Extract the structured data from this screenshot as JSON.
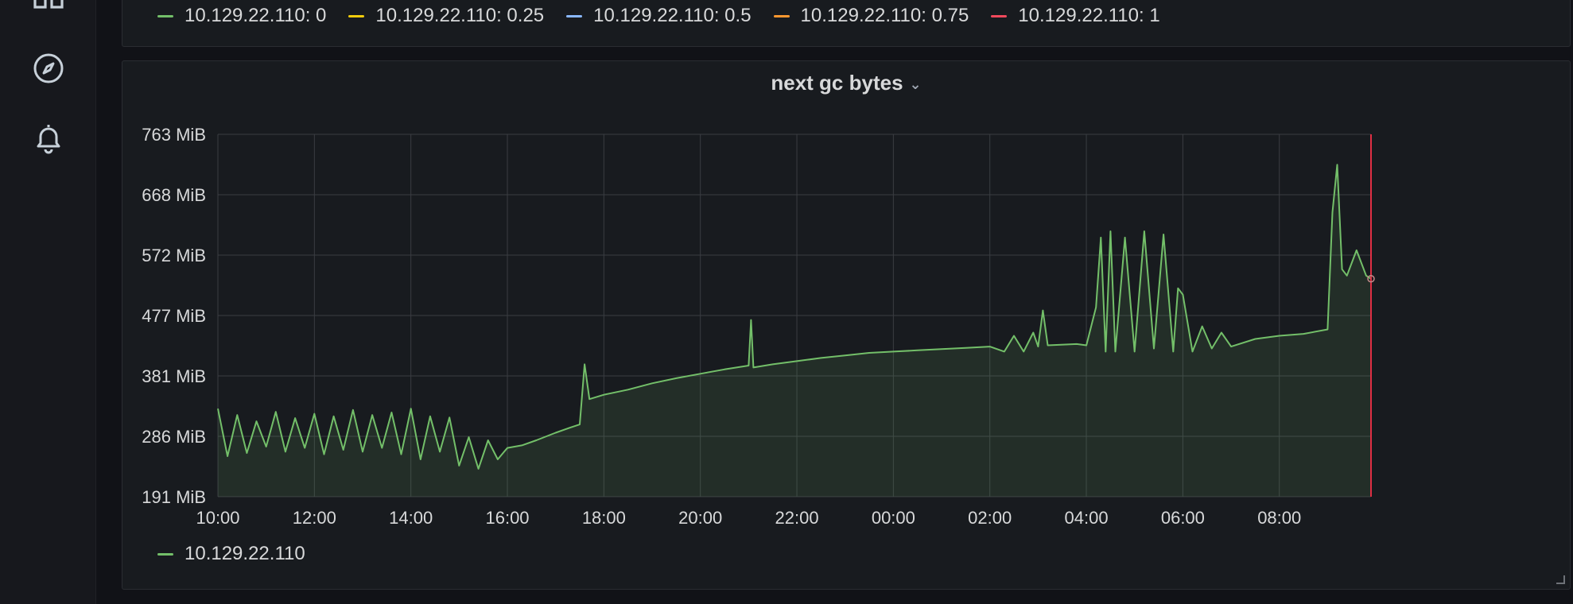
{
  "sidebar": {
    "items": [
      {
        "icon": "dashboards-icon"
      },
      {
        "icon": "explore-compass-icon"
      },
      {
        "icon": "alerting-bell-icon"
      }
    ]
  },
  "top_panel": {
    "legend": [
      {
        "label": "10.129.22.110: 0",
        "color": "#73bf69"
      },
      {
        "label": "10.129.22.110: 0.25",
        "color": "#f2cc0c"
      },
      {
        "label": "10.129.22.110: 0.5",
        "color": "#8ab8ff"
      },
      {
        "label": "10.129.22.110: 0.75",
        "color": "#ff9830"
      },
      {
        "label": "10.129.22.110: 1",
        "color": "#f2495c"
      }
    ]
  },
  "panel": {
    "title": "next gc bytes",
    "legend": [
      {
        "label": "10.129.22.110",
        "color": "#73bf69"
      }
    ]
  },
  "colors": {
    "series": "#73bf69",
    "grid": "#3a3d42",
    "now_marker": "#e02f44"
  },
  "chart_data": {
    "type": "area",
    "title": "next gc bytes",
    "y_unit": "MiB",
    "ylim": [
      191,
      763
    ],
    "y_ticks": [
      "191 MiB",
      "286 MiB",
      "381 MiB",
      "477 MiB",
      "572 MiB",
      "668 MiB",
      "763 MiB"
    ],
    "x_ticks": [
      "10:00",
      "12:00",
      "14:00",
      "16:00",
      "18:00",
      "20:00",
      "22:00",
      "00:00",
      "02:00",
      "04:00",
      "06:00",
      "08:00"
    ],
    "x_range_hours": [
      10.0,
      33.9
    ],
    "grid": true,
    "legend_position": "bottom-left",
    "series": [
      {
        "name": "10.129.22.110",
        "color": "#73bf69",
        "points": [
          [
            10.0,
            330
          ],
          [
            10.2,
            255
          ],
          [
            10.4,
            320
          ],
          [
            10.6,
            260
          ],
          [
            10.8,
            310
          ],
          [
            11.0,
            270
          ],
          [
            11.2,
            325
          ],
          [
            11.4,
            262
          ],
          [
            11.6,
            315
          ],
          [
            11.8,
            268
          ],
          [
            12.0,
            322
          ],
          [
            12.2,
            258
          ],
          [
            12.4,
            318
          ],
          [
            12.6,
            265
          ],
          [
            12.8,
            328
          ],
          [
            13.0,
            262
          ],
          [
            13.2,
            320
          ],
          [
            13.4,
            268
          ],
          [
            13.6,
            324
          ],
          [
            13.8,
            258
          ],
          [
            14.0,
            330
          ],
          [
            14.2,
            250
          ],
          [
            14.4,
            318
          ],
          [
            14.6,
            262
          ],
          [
            14.8,
            316
          ],
          [
            15.0,
            240
          ],
          [
            15.2,
            285
          ],
          [
            15.4,
            235
          ],
          [
            15.6,
            280
          ],
          [
            15.8,
            250
          ],
          [
            16.0,
            268
          ],
          [
            16.3,
            272
          ],
          [
            16.6,
            280
          ],
          [
            17.0,
            292
          ],
          [
            17.3,
            300
          ],
          [
            17.5,
            305
          ],
          [
            17.6,
            400
          ],
          [
            17.7,
            345
          ],
          [
            18.0,
            352
          ],
          [
            18.5,
            360
          ],
          [
            19.0,
            370
          ],
          [
            19.5,
            378
          ],
          [
            20.0,
            385
          ],
          [
            20.5,
            392
          ],
          [
            21.0,
            398
          ],
          [
            21.05,
            470
          ],
          [
            21.1,
            395
          ],
          [
            21.5,
            400
          ],
          [
            22.0,
            405
          ],
          [
            22.5,
            410
          ],
          [
            23.0,
            414
          ],
          [
            23.5,
            418
          ],
          [
            24.0,
            420
          ],
          [
            24.5,
            422
          ],
          [
            25.0,
            424
          ],
          [
            25.5,
            426
          ],
          [
            26.0,
            428
          ],
          [
            26.3,
            420
          ],
          [
            26.5,
            445
          ],
          [
            26.7,
            420
          ],
          [
            26.9,
            450
          ],
          [
            27.0,
            428
          ],
          [
            27.1,
            485
          ],
          [
            27.2,
            430
          ],
          [
            27.8,
            432
          ],
          [
            28.0,
            430
          ],
          [
            28.2,
            490
          ],
          [
            28.3,
            600
          ],
          [
            28.4,
            420
          ],
          [
            28.5,
            610
          ],
          [
            28.6,
            420
          ],
          [
            28.8,
            600
          ],
          [
            29.0,
            420
          ],
          [
            29.2,
            610
          ],
          [
            29.4,
            425
          ],
          [
            29.6,
            605
          ],
          [
            29.8,
            420
          ],
          [
            29.9,
            520
          ],
          [
            30.0,
            510
          ],
          [
            30.2,
            420
          ],
          [
            30.4,
            460
          ],
          [
            30.6,
            425
          ],
          [
            30.8,
            450
          ],
          [
            31.0,
            428
          ],
          [
            31.5,
            440
          ],
          [
            32.0,
            445
          ],
          [
            32.5,
            448
          ],
          [
            33.0,
            455
          ],
          [
            33.1,
            640
          ],
          [
            33.2,
            715
          ],
          [
            33.3,
            550
          ],
          [
            33.4,
            540
          ],
          [
            33.6,
            580
          ],
          [
            33.8,
            540
          ],
          [
            33.9,
            535
          ]
        ]
      }
    ]
  }
}
